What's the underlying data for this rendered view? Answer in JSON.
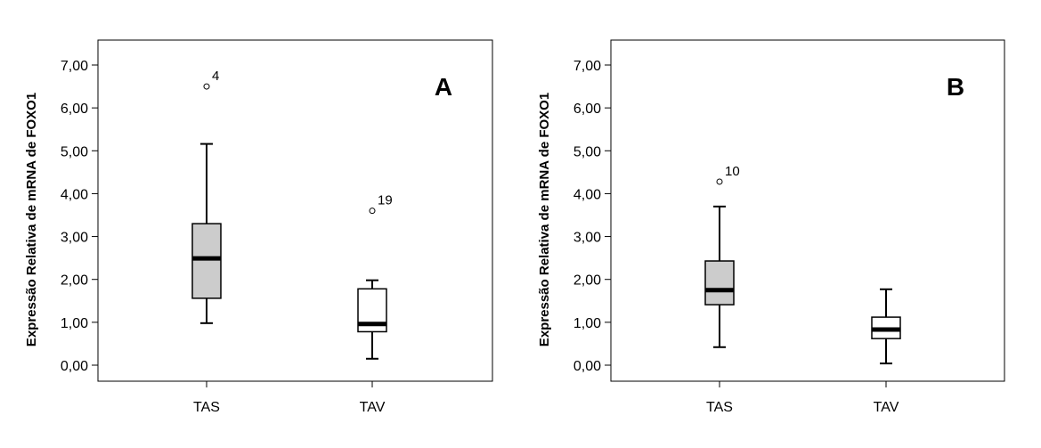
{
  "chart_data": [
    {
      "type": "boxplot",
      "panel_label": "A",
      "ylabel": "Expressão Relativa de mRNA de FOXO1",
      "ylim": [
        -0.4,
        7.7
      ],
      "yticks": [
        0,
        1,
        2,
        3,
        4,
        5,
        6,
        7
      ],
      "ytick_labels": [
        "0,00",
        "1,00",
        "2,00",
        "3,00",
        "4,00",
        "5,00",
        "6,00",
        "7,00"
      ],
      "categories": [
        "TAS",
        "TAV"
      ],
      "boxes": [
        {
          "category": "TAS",
          "min": 0.98,
          "q1": 1.56,
          "median": 2.49,
          "q3": 3.3,
          "max": 5.16,
          "fill": "#cccccc",
          "outliers": [
            {
              "value": 6.5,
              "label": "4"
            }
          ]
        },
        {
          "category": "TAV",
          "min": 0.15,
          "q1": 0.78,
          "median": 0.96,
          "q3": 1.78,
          "max": 1.98,
          "fill": "#ffffff",
          "outliers": [
            {
              "value": 3.6,
              "label": "19"
            }
          ]
        }
      ]
    },
    {
      "type": "boxplot",
      "panel_label": "B",
      "ylabel": "Expressão Relativa de mRNA de FOXO1",
      "ylim": [
        -0.4,
        7.7
      ],
      "yticks": [
        0,
        1,
        2,
        3,
        4,
        5,
        6,
        7
      ],
      "ytick_labels": [
        "0,00",
        "1,00",
        "2,00",
        "3,00",
        "4,00",
        "5,00",
        "6,00",
        "7,00"
      ],
      "categories": [
        "TAS",
        "TAV"
      ],
      "boxes": [
        {
          "category": "TAS",
          "min": 0.42,
          "q1": 1.41,
          "median": 1.75,
          "q3": 2.43,
          "max": 3.7,
          "fill": "#cccccc",
          "outliers": [
            {
              "value": 4.28,
              "label": "10"
            }
          ]
        },
        {
          "category": "TAV",
          "min": 0.04,
          "q1": 0.62,
          "median": 0.83,
          "q3": 1.12,
          "max": 1.77,
          "fill": "#ffffff",
          "outliers": []
        }
      ]
    }
  ]
}
